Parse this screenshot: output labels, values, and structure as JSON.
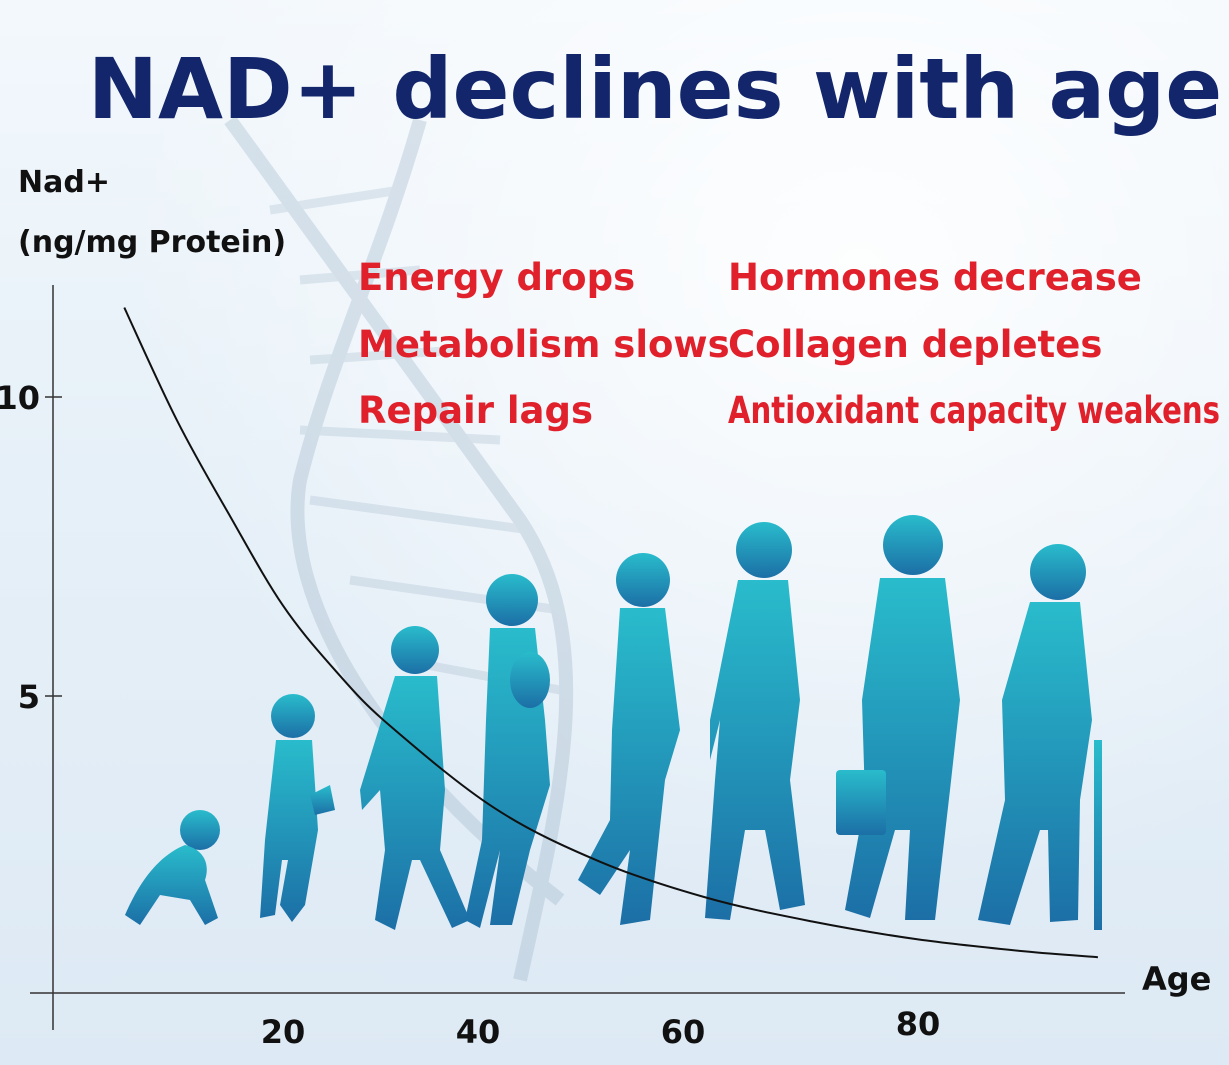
{
  "colors": {
    "title": "#13266b",
    "annotation": "#e0202a",
    "figure_top": "#29bccc",
    "figure_bottom": "#1c6fa6",
    "curve": "#111111"
  },
  "chart_data": {
    "type": "line",
    "title": "NAD+ declines with age",
    "ylabel_line1": "Nad+",
    "ylabel_line2": "(ng/mg Protein)",
    "xlabel": "Age",
    "x_ticks": [
      "20",
      "40",
      "60",
      "80"
    ],
    "y_ticks": [
      "10",
      "5"
    ],
    "xlim": [
      0,
      100
    ],
    "ylim": [
      0,
      12
    ],
    "grid": false,
    "series": [
      {
        "x": [
          5,
          10,
          15,
          20,
          25,
          30,
          40,
          50,
          60,
          70,
          80,
          90,
          97
        ],
        "values": [
          11.5,
          9.6,
          8.0,
          6.5,
          5.4,
          4.5,
          3.1,
          2.2,
          1.6,
          1.2,
          0.9,
          0.7,
          0.6
        ]
      }
    ],
    "annotations_left": [
      "Energy drops",
      "Metabolism slows",
      "Repair lags"
    ],
    "annotations_right": [
      "Hormones decrease",
      "Collagen depletes",
      "Antioxidant capacity weakens"
    ],
    "life_stages": [
      "baby-crawling",
      "toddler",
      "child",
      "teen",
      "adult",
      "middle-aged",
      "older-adult",
      "elderly-with-cane"
    ]
  }
}
